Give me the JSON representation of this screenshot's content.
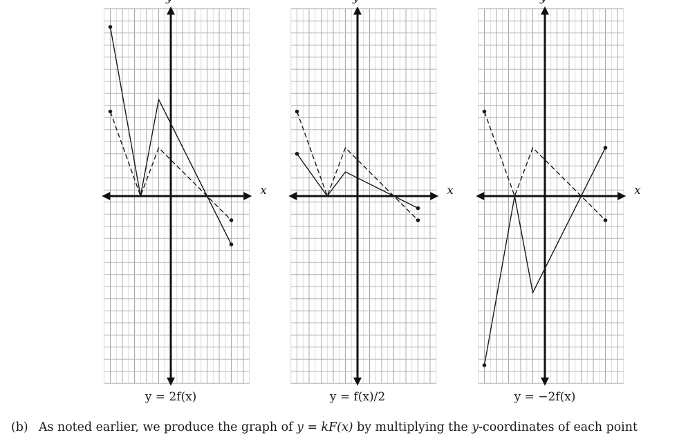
{
  "chart_data": [
    {
      "type": "line",
      "caption": "y = 2f(x)",
      "xlabel": "x",
      "ylabel": "y",
      "xlim": [
        -5,
        6
      ],
      "ylim": [
        -15,
        15
      ],
      "grid": true,
      "series": [
        {
          "style": "dashed",
          "x": [
            -5,
            -2.5,
            -1,
            5
          ],
          "y": [
            7,
            0,
            4,
            -2
          ]
        },
        {
          "style": "solid",
          "x": [
            -5,
            -2.5,
            -1,
            5
          ],
          "y": [
            14,
            0,
            8,
            -4
          ]
        }
      ]
    },
    {
      "type": "line",
      "caption": "y = f(x)/2",
      "xlabel": "x",
      "ylabel": "y",
      "xlim": [
        -5,
        6
      ],
      "ylim": [
        -15,
        15
      ],
      "grid": true,
      "series": [
        {
          "style": "dashed",
          "x": [
            -5,
            -2.5,
            -1,
            5
          ],
          "y": [
            7,
            0,
            4,
            -2
          ]
        },
        {
          "style": "solid",
          "x": [
            -5,
            -2.5,
            -1,
            5
          ],
          "y": [
            3.5,
            0,
            2,
            -1
          ]
        }
      ]
    },
    {
      "type": "line",
      "caption": "y = −2f(x)",
      "xlabel": "x",
      "ylabel": "y",
      "xlim": [
        -5,
        6
      ],
      "ylim": [
        -15,
        15
      ],
      "grid": true,
      "series": [
        {
          "style": "dashed",
          "x": [
            -5,
            -2.5,
            -1,
            5
          ],
          "y": [
            7,
            0,
            4,
            -2
          ]
        },
        {
          "style": "solid",
          "x": [
            -5,
            -2.5,
            -1,
            5
          ],
          "y": [
            -14,
            0,
            -8,
            4
          ]
        }
      ]
    }
  ],
  "text": {
    "marker": "(b)",
    "body_1": "As noted earlier, we produce the graph of ",
    "eq": "y = kF(x)",
    "body_2": " by multiplying the ",
    "yword": "y",
    "body_3": "-coordinates of each point"
  }
}
